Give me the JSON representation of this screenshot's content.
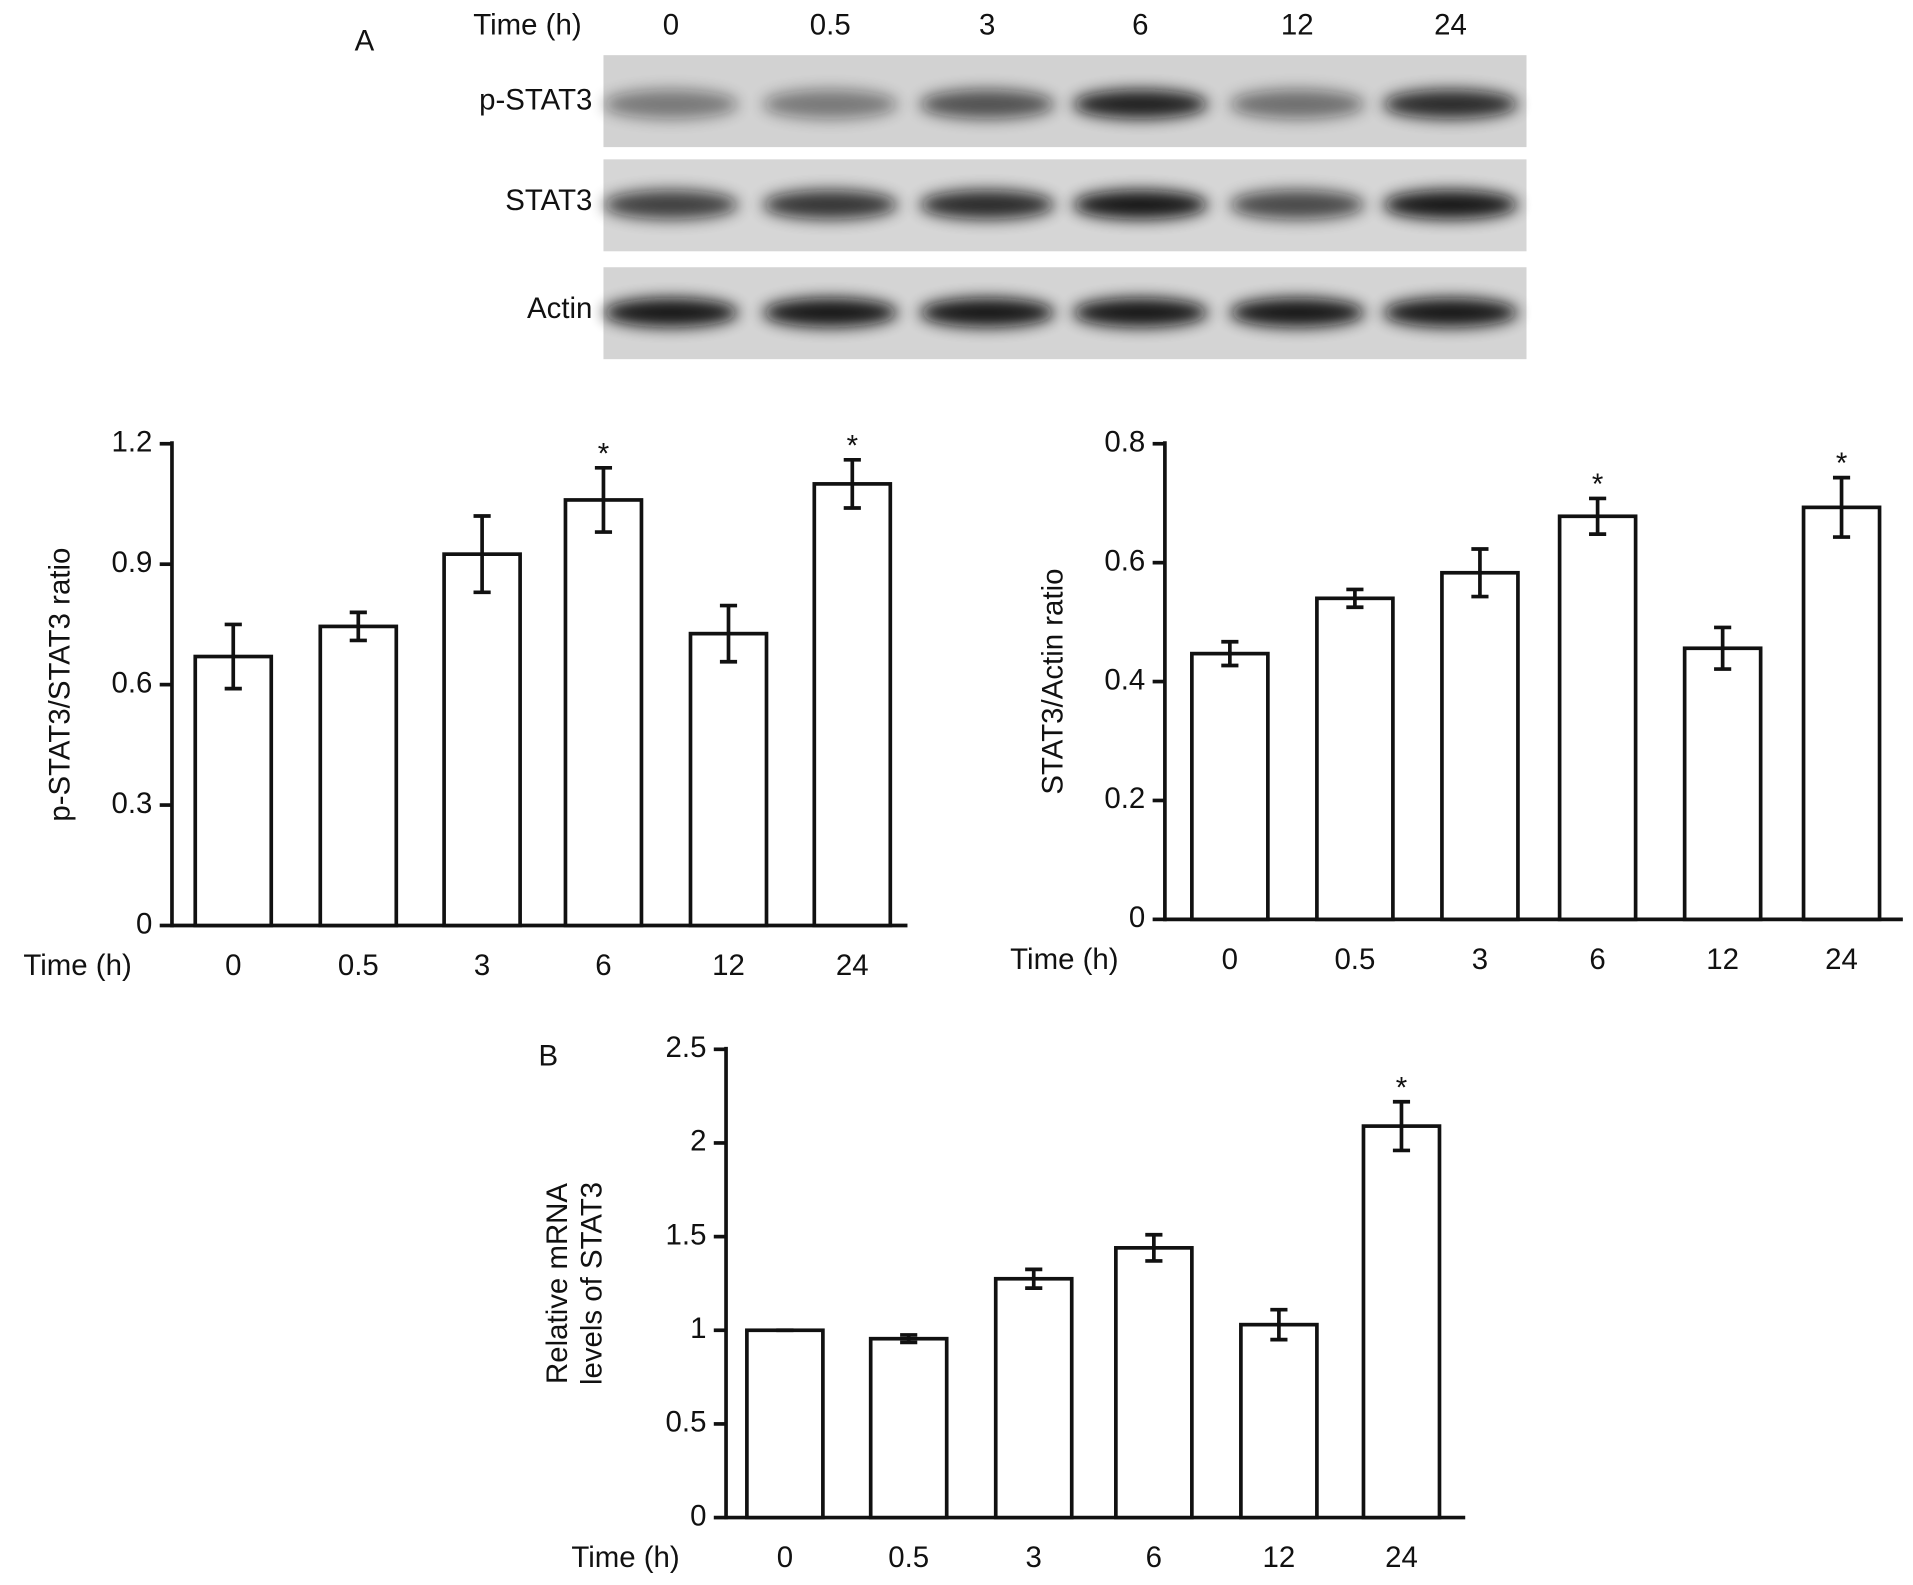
{
  "blot": {
    "panel_label": "A",
    "time_label": "Time (h)",
    "times": [
      "0",
      "0.5",
      "3",
      "6",
      "12",
      "24"
    ],
    "rows": [
      "p-STAT3",
      "STAT3",
      "Actin"
    ]
  },
  "panel_b_label": "B",
  "chart_data": [
    {
      "type": "bar",
      "ylabel": [
        "p-STAT3/STAT3 ratio"
      ],
      "xlabel": "Time (h)",
      "categories": [
        "0",
        "0.5",
        "3",
        "6",
        "12",
        "24"
      ],
      "values": [
        0.67,
        0.745,
        0.925,
        1.06,
        0.727,
        1.1
      ],
      "errors": [
        0.08,
        0.035,
        0.095,
        0.08,
        0.07,
        0.06
      ],
      "annotations": [
        {
          "category": "6",
          "text": "*"
        },
        {
          "category": "24",
          "text": "*"
        }
      ],
      "ylim": [
        0,
        1.2
      ],
      "yticks": [
        0,
        0.3,
        0.6,
        0.9,
        1.2
      ],
      "color": "#ffffff"
    },
    {
      "type": "bar",
      "ylabel": [
        "STAT3/Actin ratio"
      ],
      "xlabel": "Time (h)",
      "categories": [
        "0",
        "0.5",
        "3",
        "6",
        "12",
        "24"
      ],
      "values": [
        0.447,
        0.54,
        0.583,
        0.678,
        0.456,
        0.693
      ],
      "errors": [
        0.02,
        0.015,
        0.04,
        0.03,
        0.035,
        0.05
      ],
      "annotations": [
        {
          "category": "6",
          "text": "*"
        },
        {
          "category": "24",
          "text": "*"
        }
      ],
      "ylim": [
        0,
        0.8
      ],
      "yticks": [
        0,
        0.2,
        0.4,
        0.6,
        0.8
      ],
      "color": "#ffffff"
    },
    {
      "type": "bar",
      "ylabel": [
        "Relative mRNA",
        "levels of STAT3"
      ],
      "xlabel": "Time (h)",
      "categories": [
        "0",
        "0.5",
        "3",
        "6",
        "12",
        "24"
      ],
      "values": [
        1.0,
        0.955,
        1.275,
        1.44,
        1.03,
        2.09
      ],
      "errors": [
        0,
        0.02,
        0.05,
        0.07,
        0.08,
        0.13
      ],
      "annotations": [
        {
          "category": "24",
          "text": "*"
        }
      ],
      "ylim": [
        0,
        2.5
      ],
      "yticks": [
        0,
        0.5,
        1,
        1.5,
        2,
        2.5
      ],
      "color": "#ffffff"
    }
  ]
}
